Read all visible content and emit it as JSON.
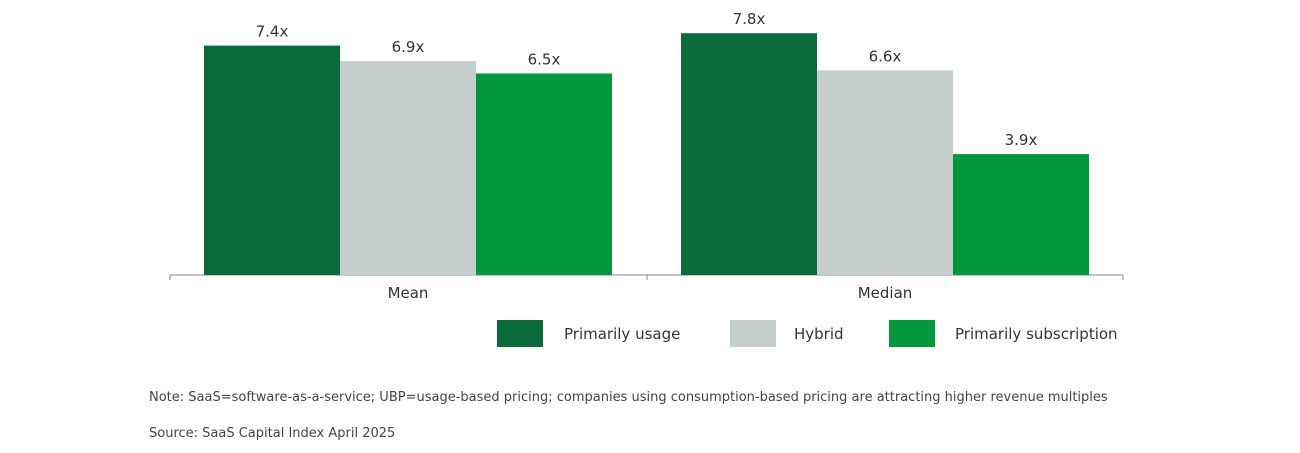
{
  "chart_data": {
    "type": "bar",
    "categories": [
      "Mean",
      "Median"
    ],
    "series": [
      {
        "name": "Primarily usage",
        "values": [
          7.4,
          7.8
        ],
        "labels": [
          "7.4x",
          "7.8x"
        ],
        "color": "#0b6b3c"
      },
      {
        "name": "Hybrid",
        "values": [
          6.9,
          6.6
        ],
        "labels": [
          "6.9x",
          "6.6x"
        ],
        "color": "#c6cecd"
      },
      {
        "name": "Primarily subscription",
        "values": [
          6.5,
          3.9
        ],
        "labels": [
          "6.5x",
          "3.9x"
        ],
        "color": "#00983b"
      }
    ],
    "title": "",
    "xlabel": "",
    "ylabel": "",
    "ylim": [
      0,
      8
    ],
    "grid": false,
    "legend_position": "bottom-right"
  },
  "notes": {
    "note": "Note: SaaS=software-as-a-service; UBP=usage-based pricing; companies using consumption-based pricing are attracting higher revenue multiples",
    "source": "Source: SaaS Capital Index April 2025"
  }
}
